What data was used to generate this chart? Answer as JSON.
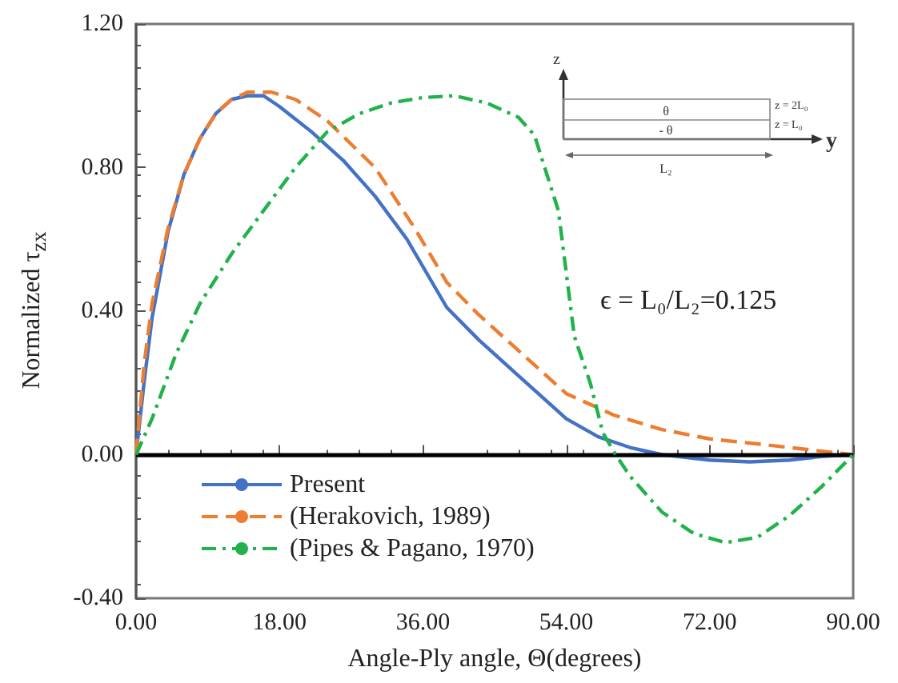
{
  "chart_data": {
    "type": "line",
    "xlabel": "Angle-Ply angle, Θ(degrees)",
    "ylabel": "Normalized τ$_{zx}$",
    "annotations": [
      "ϵ = L₀/L₂=0.125",
      "z",
      "y",
      "θ",
      "- θ",
      "z = 2L₀",
      "z = L₀",
      "L₂"
    ],
    "xlim": [
      0,
      90
    ],
    "xticks": [
      {
        "value": 0,
        "label": "0.00"
      },
      {
        "value": 18,
        "label": "18.00"
      },
      {
        "value": 36,
        "label": "36.00"
      },
      {
        "value": 54,
        "label": "54.00"
      },
      {
        "value": 72,
        "label": "72.00"
      },
      {
        "value": 90,
        "label": "90.00"
      }
    ],
    "ylim": [
      -0.4,
      1.2
    ],
    "yticks": [
      {
        "value": -0.4,
        "label": "-0.40"
      },
      {
        "value": 0,
        "label": "0.00"
      },
      {
        "value": 0.4,
        "label": "0.40"
      },
      {
        "value": 0.8,
        "label": "0.80"
      },
      {
        "value": 1.2,
        "label": "1.20"
      }
    ],
    "grid": false,
    "legend": "bottom left",
    "marker": "none",
    "ref_lines": [
      {
        "axis": "y",
        "value": 0,
        "color": "#000000"
      }
    ],
    "series": [
      {
        "name": "Present",
        "color": "#4472c4",
        "line_style": "solid",
        "x": [
          0,
          1,
          2,
          4,
          6,
          8,
          10,
          12,
          14,
          16,
          18,
          22,
          26,
          30,
          34,
          39,
          43,
          48,
          54,
          58,
          62,
          66,
          72,
          77,
          82,
          86,
          90
        ],
        "values": [
          0,
          0.2,
          0.38,
          0.62,
          0.78,
          0.88,
          0.95,
          0.99,
          1.0,
          1.0,
          0.97,
          0.9,
          0.82,
          0.72,
          0.6,
          0.41,
          0.32,
          0.22,
          0.1,
          0.05,
          0.02,
          0.0,
          -0.015,
          -0.02,
          -0.015,
          -0.005,
          0
        ]
      },
      {
        "name": "(Herakovich, 1989)",
        "color": "#ed7d31",
        "line_style": "dashed",
        "x": [
          0,
          1,
          2,
          4,
          6,
          8,
          10,
          12,
          14,
          17,
          20,
          24,
          30,
          35,
          39,
          43,
          48,
          54,
          60,
          66,
          72,
          78,
          84,
          90
        ],
        "values": [
          0,
          0.25,
          0.42,
          0.63,
          0.78,
          0.88,
          0.95,
          0.99,
          1.01,
          1.01,
          0.99,
          0.93,
          0.8,
          0.63,
          0.48,
          0.39,
          0.29,
          0.17,
          0.11,
          0.07,
          0.044,
          0.03,
          0.015,
          0
        ]
      },
      {
        "name": "(Pipes & Pagano, 1970)",
        "color": "#21b24b",
        "line_style": "dashdot",
        "x": [
          0,
          2,
          5,
          8,
          12,
          16,
          20,
          24,
          28,
          32,
          36,
          40,
          44,
          48,
          50,
          53,
          55,
          57,
          58.6,
          60.2,
          62,
          66,
          70,
          74,
          78,
          82,
          86,
          90
        ],
        "values": [
          0,
          0.1,
          0.28,
          0.42,
          0.56,
          0.68,
          0.8,
          0.9,
          0.95,
          0.98,
          0.995,
          1.0,
          0.98,
          0.94,
          0.89,
          0.68,
          0.33,
          0.2,
          0.06,
          0.0,
          -0.06,
          -0.16,
          -0.22,
          -0.245,
          -0.23,
          -0.17,
          -0.09,
          0
        ]
      }
    ]
  }
}
